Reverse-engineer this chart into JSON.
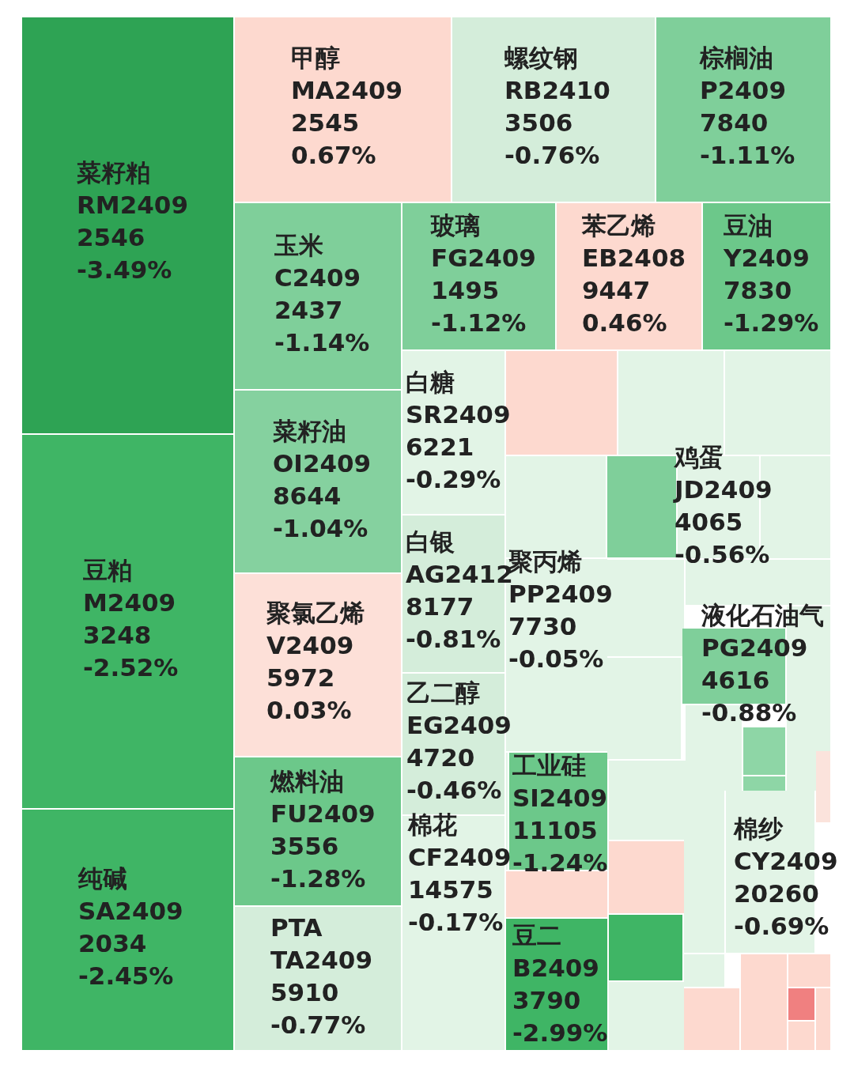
{
  "chart_data": {
    "type": "other",
    "categories": [
      "菜籽粕\nRM2409",
      "甲醇\nMA2409",
      "螺纹钢\nRB2410",
      "棕榈油\nP2409",
      "玉米\nC2409",
      "玻璃\nFG2409",
      "苯乙烯\nEB2408",
      "豆油\nY2409",
      "白糖\nSR2409",
      "菜籽油\nOI2409",
      "鸡蛋\nJD2409",
      "豆粕\nM2409",
      "白银\nAG2412",
      "聚丙烯\nPP2409",
      "聚氯乙烯\nV2409",
      "液化石油气\nPG2409",
      "乙二醇\nEG2409",
      "燃料油\nFU2409",
      "工业硅\nSI2409",
      "棉纱\nCY2409",
      "棉花\nCF2409",
      "纯碱\nSA2409",
      "PTA\nTA2409",
      "豆二\nB2409"
    ],
    "series": [
      {
        "values": [
          2546,
          2545,
          3506,
          7840,
          2437,
          1495,
          9447,
          7830,
          6221,
          8644,
          4065,
          3248,
          8177,
          7730,
          5972,
          4616,
          4720,
          3556,
          11105,
          20260,
          14575,
          2034,
          5910,
          3790
        ],
        "colors": [
          "#2ea354",
          "#fdd9cf",
          "#d4edda",
          "#7fcf9a",
          "#7fcf9a",
          "#7fcf9a",
          "#fdd9cf",
          "#6cc88a",
          "#e2f4e6",
          "#85d19f",
          "#e2f4e6",
          "#3fb565",
          "#d4edda",
          "#e2f4e6",
          "#fde0d8",
          "#7fcf9a",
          "#d4edda",
          "#6cc88a",
          "#6cc88a",
          "#e2f4e6",
          "#e2f4e6",
          "#3fb565",
          "#d4edda",
          "#3fb565"
        ]
      }
    ],
    "annotations": [
      "-3.49%",
      "0.67%",
      "-0.76%",
      "-1.11%",
      "-1.14%",
      "-1.12%",
      "0.46%",
      "-1.29%",
      "-0.29%",
      "-1.04%",
      "-0.56%",
      "-2.52%",
      "-0.81%",
      "-0.05%",
      "0.03%",
      "-0.88%",
      "-0.46%",
      "-1.28%",
      "-1.24%",
      "-0.69%",
      "-0.17%",
      "-2.45%",
      "-0.77%",
      "-2.99%"
    ],
    "data_labels": true
  }
}
